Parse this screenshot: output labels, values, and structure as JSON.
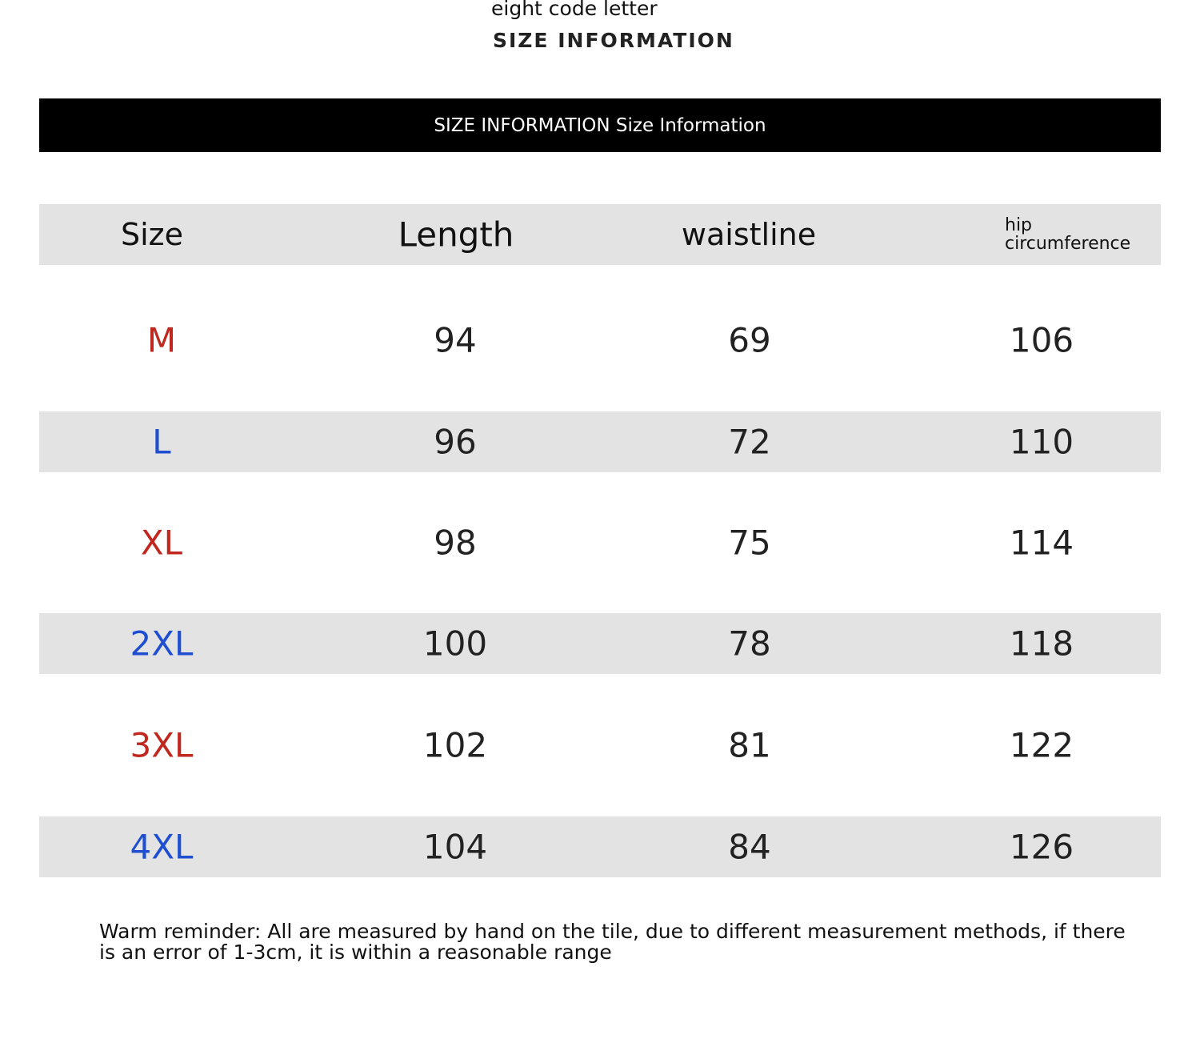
{
  "top": {
    "subtitle": "eight code letter",
    "heading": "SIZE INFORMATION"
  },
  "banner": "SIZE INFORMATION Size Information",
  "table": {
    "headers": [
      "Size",
      "Length",
      "waistline",
      "hip circumference"
    ],
    "rows": [
      {
        "size": "M",
        "length": "94",
        "waistline": "69",
        "hip": "106",
        "color": "#c0281f"
      },
      {
        "size": "L",
        "length": "96",
        "waistline": "72",
        "hip": "110",
        "color": "#1f4fd0"
      },
      {
        "size": "XL",
        "length": "98",
        "waistline": "75",
        "hip": "114",
        "color": "#c0281f"
      },
      {
        "size": "2XL",
        "length": "100",
        "waistline": "78",
        "hip": "118",
        "color": "#1f4fd0"
      },
      {
        "size": "3XL",
        "length": "102",
        "waistline": "81",
        "hip": "122",
        "color": "#c0281f"
      },
      {
        "size": "4XL",
        "length": "104",
        "waistline": "84",
        "hip": "126",
        "color": "#1f4fd0"
      }
    ]
  },
  "note": "Warm reminder: All are measured by hand on the tile, due to different measurement methods, if there is an error of 1-3cm, it is within a reasonable range"
}
